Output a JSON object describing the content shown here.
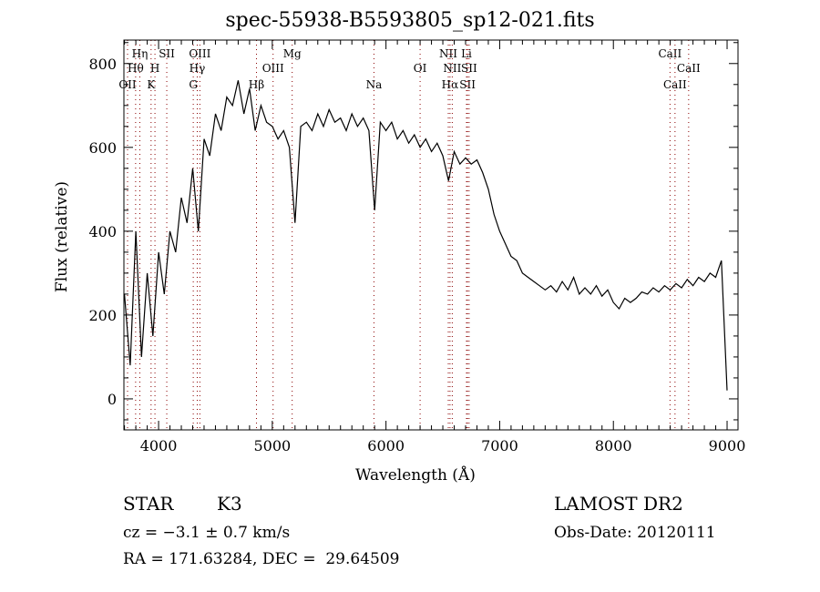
{
  "chart_data": {
    "type": "line",
    "title": "spec-55938-B5593805_sp12-021.fits",
    "xlabel": "Wavelength (Å)",
    "ylabel": "Flux (relative)",
    "xlim": [
      3695,
      9096
    ],
    "ylim": [
      -74,
      856
    ],
    "xticks": [
      4000,
      5000,
      6000,
      7000,
      8000,
      9000
    ],
    "yticks": [
      0,
      200,
      400,
      600,
      800
    ],
    "grid": false,
    "series": [
      {
        "name": "flux",
        "x_start": 3700,
        "x_step": 50,
        "values": [
          250,
          80,
          400,
          100,
          300,
          150,
          350,
          250,
          400,
          350,
          480,
          420,
          550,
          400,
          620,
          580,
          680,
          640,
          720,
          700,
          760,
          680,
          740,
          640,
          700,
          660,
          650,
          620,
          640,
          600,
          420,
          650,
          660,
          640,
          680,
          650,
          690,
          660,
          670,
          640,
          680,
          650,
          670,
          640,
          450,
          660,
          640,
          660,
          620,
          640,
          610,
          630,
          600,
          620,
          590,
          610,
          580,
          520,
          590,
          560,
          575,
          560,
          570,
          540,
          500,
          440,
          400,
          370,
          340,
          330,
          300,
          290,
          280,
          270,
          260,
          270,
          255,
          280,
          260,
          290,
          250,
          265,
          250,
          270,
          245,
          260,
          230,
          215,
          240,
          230,
          240,
          255,
          250,
          265,
          255,
          270,
          260,
          275,
          265,
          285,
          270,
          290,
          280,
          300,
          290,
          330,
          20
        ]
      }
    ],
    "line_markers": [
      {
        "label": "OII",
        "wave": 3727,
        "row": 3
      },
      {
        "label": "Hθ",
        "wave": 3798,
        "row": 2
      },
      {
        "label": "Hη",
        "wave": 3835,
        "row": 1
      },
      {
        "label": "K",
        "wave": 3934,
        "row": 3
      },
      {
        "label": "H",
        "wave": 3968,
        "row": 2
      },
      {
        "label": "SII",
        "wave": 4072,
        "row": 1
      },
      {
        "label": "G",
        "wave": 4305,
        "row": 3
      },
      {
        "label": "Hγ",
        "wave": 4340,
        "row": 2
      },
      {
        "label": "OIII",
        "wave": 4363,
        "row": 1
      },
      {
        "label": "Hβ",
        "wave": 4861,
        "row": 3
      },
      {
        "label": "OIII",
        "wave": 5007,
        "row": 2
      },
      {
        "label": "Mg",
        "wave": 5175,
        "row": 1
      },
      {
        "label": "Na",
        "wave": 5894,
        "row": 3
      },
      {
        "label": "OI",
        "wave": 6300,
        "row": 2
      },
      {
        "label": "NII",
        "wave": 6548,
        "row": 1
      },
      {
        "label": "Hα",
        "wave": 6563,
        "row": 3
      },
      {
        "label": "NII",
        "wave": 6583,
        "row": 2
      },
      {
        "label": "Li",
        "wave": 6708,
        "row": 1
      },
      {
        "label": "SII",
        "wave": 6717,
        "row": 3
      },
      {
        "label": "SII",
        "wave": 6731,
        "row": 2
      },
      {
        "label": "CaII",
        "wave": 8498,
        "row": 1
      },
      {
        "label": "CaII",
        "wave": 8542,
        "row": 3
      },
      {
        "label": "CaII",
        "wave": 8662,
        "row": 2
      }
    ],
    "marker_color": "#8b0000"
  },
  "info": {
    "class": "STAR",
    "subclass": "K3",
    "survey": "LAMOST DR2",
    "cz": "cz = −3.1 ± 0.7 km/s",
    "obs_date": "Obs-Date: 20120111",
    "coords": "RA = 171.63284, DEC =  29.64509"
  }
}
